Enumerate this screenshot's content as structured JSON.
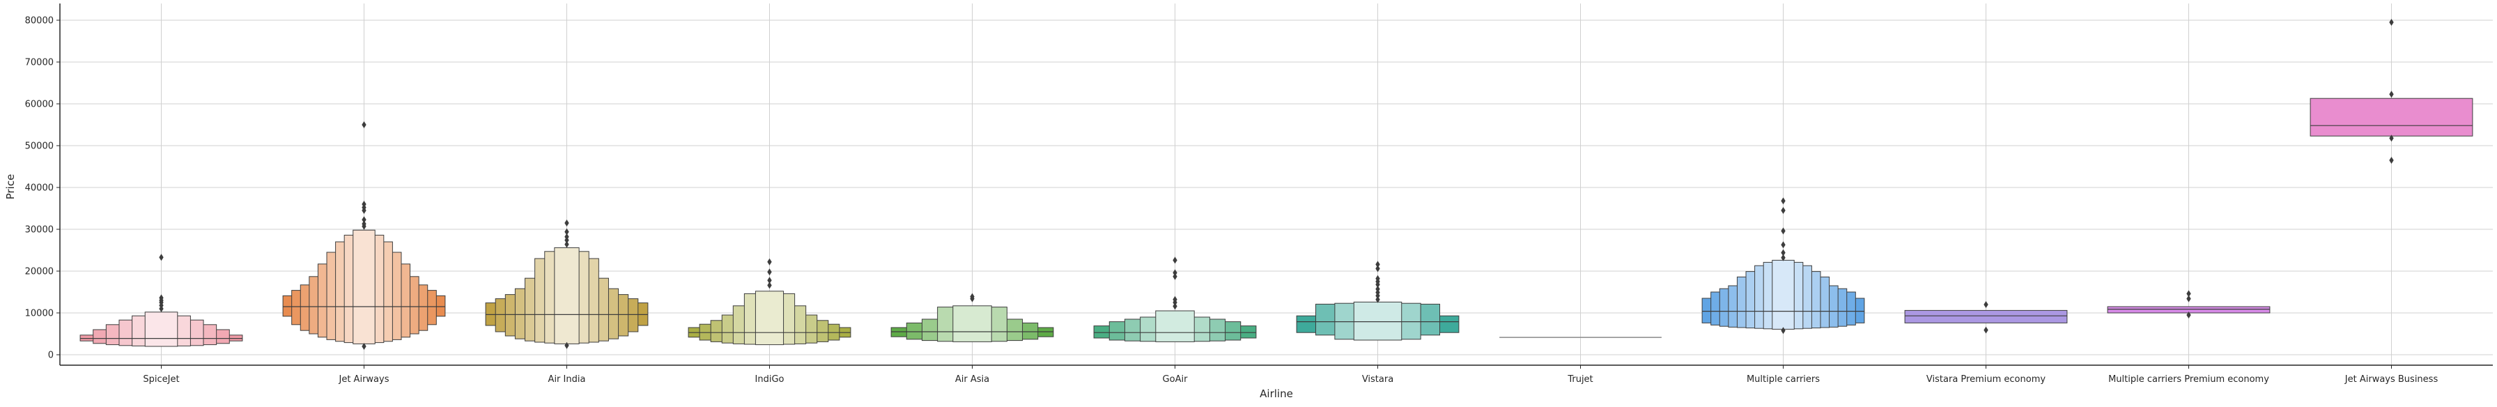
{
  "chart_data": {
    "type": "boxen",
    "xlabel": "Airline",
    "ylabel": "Price",
    "ylim": [
      -2500,
      84000
    ],
    "yticks": [
      0,
      10000,
      20000,
      30000,
      40000,
      50000,
      60000,
      70000,
      80000
    ],
    "grid": true,
    "categories": [
      "SpiceJet",
      "Jet Airways",
      "Air India",
      "IndiGo",
      "Air Asia",
      "GoAir",
      "Vistara",
      "Trujet",
      "Multiple carriers",
      "Vistara Premium economy",
      "Multiple carriers Premium economy",
      "Jet Airways Business"
    ],
    "series": [
      {
        "median": 3900,
        "color": "#ef9aa5",
        "levels": [
          [
            3300,
            4700
          ],
          [
            2700,
            6000
          ],
          [
            2400,
            7200
          ],
          [
            2200,
            8300
          ],
          [
            2100,
            9300
          ],
          [
            2000,
            10200
          ]
        ],
        "outliers": [
          11000,
          11800,
          12500,
          13000,
          13600,
          23300
        ]
      },
      {
        "median": 11500,
        "color": "#e88c50",
        "levels": [
          [
            9200,
            14100
          ],
          [
            7200,
            15400
          ],
          [
            5800,
            16700
          ],
          [
            5000,
            18700
          ],
          [
            4200,
            21700
          ],
          [
            3600,
            24500
          ],
          [
            3200,
            27000
          ],
          [
            2900,
            28600
          ],
          [
            2600,
            29800
          ]
        ],
        "outliers": [
          2000,
          30700,
          31300,
          32300,
          34500,
          35200,
          36000,
          55000
        ]
      },
      {
        "median": 9600,
        "color": "#c0a245",
        "levels": [
          [
            7000,
            12400
          ],
          [
            5500,
            13400
          ],
          [
            4500,
            14400
          ],
          [
            3800,
            15800
          ],
          [
            3300,
            18300
          ],
          [
            3000,
            23000
          ],
          [
            2800,
            24700
          ],
          [
            2600,
            25600
          ]
        ],
        "outliers": [
          2200,
          26400,
          27400,
          28200,
          29400,
          31500
        ]
      },
      {
        "median": 5300,
        "color": "#a9ae44",
        "levels": [
          [
            4200,
            6500
          ],
          [
            3500,
            7300
          ],
          [
            3100,
            8200
          ],
          [
            2800,
            9500
          ],
          [
            2600,
            11700
          ],
          [
            2500,
            14600
          ],
          [
            2400,
            15200
          ]
        ],
        "outliers": [
          16600,
          17800,
          19800,
          22200
        ]
      },
      {
        "median": 5500,
        "color": "#5eab47",
        "levels": [
          [
            4300,
            6500
          ],
          [
            3700,
            7600
          ],
          [
            3400,
            8500
          ],
          [
            3200,
            11400
          ],
          [
            3100,
            11700
          ]
        ],
        "outliers": [
          13400,
          13900
        ]
      },
      {
        "median": 5300,
        "color": "#4aae83",
        "levels": [
          [
            4000,
            6900
          ],
          [
            3500,
            7900
          ],
          [
            3300,
            8500
          ],
          [
            3200,
            9000
          ],
          [
            3100,
            10500
          ]
        ],
        "outliers": [
          11600,
          12500,
          13200,
          18700,
          19600,
          22600
        ]
      },
      {
        "median": 7900,
        "color": "#3eaa9b",
        "levels": [
          [
            5300,
            9300
          ],
          [
            4700,
            12100
          ],
          [
            3700,
            12300
          ],
          [
            3500,
            12600
          ]
        ],
        "outliers": [
          13200,
          14100,
          14900,
          15700,
          16800,
          17500,
          18200,
          20600,
          21600
        ]
      },
      {
        "median": 4140,
        "color": "#45a5ba",
        "levels": [
          [
            4140,
            4140
          ]
        ],
        "outliers": []
      },
      {
        "median": 10400,
        "color": "#60a4e4",
        "levels": [
          [
            7600,
            13500
          ],
          [
            7100,
            15000
          ],
          [
            6800,
            15800
          ],
          [
            6600,
            16500
          ],
          [
            6500,
            18600
          ],
          [
            6400,
            19900
          ],
          [
            6300,
            21300
          ],
          [
            6200,
            22100
          ],
          [
            6100,
            22600
          ]
        ],
        "outliers": [
          5800,
          23200,
          24400,
          26300,
          29600,
          34500,
          36800
        ]
      },
      {
        "median": 9300,
        "color": "#ab98e2",
        "levels": [
          [
            7600,
            10600
          ]
        ],
        "outliers": [
          5900,
          12000
        ]
      },
      {
        "median": 10900,
        "color": "#d58ae5",
        "levels": [
          [
            10000,
            11500
          ]
        ],
        "outliers": [
          9500,
          13400,
          14600
        ]
      },
      {
        "median": 54800,
        "color": "#e98dcf",
        "levels": [
          [
            52300,
            61300
          ]
        ],
        "outliers": [
          46500,
          51800,
          62300,
          79500
        ]
      }
    ]
  }
}
